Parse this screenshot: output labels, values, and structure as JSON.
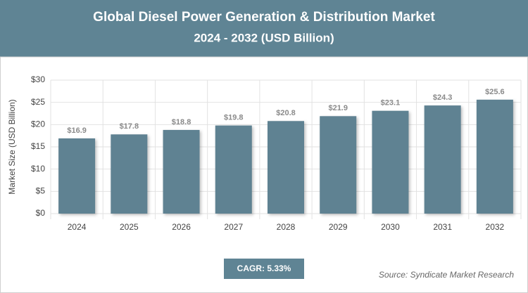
{
  "chart_data": {
    "type": "bar",
    "title": "Global Diesel Power Generation & Distribution Market",
    "subtitle": "2024 - 2032 (USD Billion)",
    "y_label": "Market Size (USD Billion)",
    "categories": [
      "2024",
      "2025",
      "2026",
      "2027",
      "2028",
      "2029",
      "2030",
      "2031",
      "2032"
    ],
    "values": [
      16.9,
      17.8,
      18.8,
      19.8,
      20.8,
      21.9,
      23.1,
      24.3,
      25.6
    ],
    "value_labels": [
      "$16.9",
      "$17.8",
      "$18.8",
      "$19.8",
      "$20.8",
      "$21.9",
      "$23.1",
      "$24.3",
      "$25.6"
    ],
    "color": "#5f8292",
    "ylim": [
      0,
      30
    ],
    "yticks": [
      {
        "value": 0,
        "label": "$0"
      },
      {
        "value": 5,
        "label": "$5"
      },
      {
        "value": 10,
        "label": "$10"
      },
      {
        "value": 15,
        "label": "$15"
      },
      {
        "value": 20,
        "label": "$20"
      },
      {
        "value": 25,
        "label": "$25"
      },
      {
        "value": 30,
        "label": "$30"
      }
    ],
    "grid": true,
    "cagr": "CAGR: 5.33%",
    "source": "Source: Syndicate Market Research"
  }
}
